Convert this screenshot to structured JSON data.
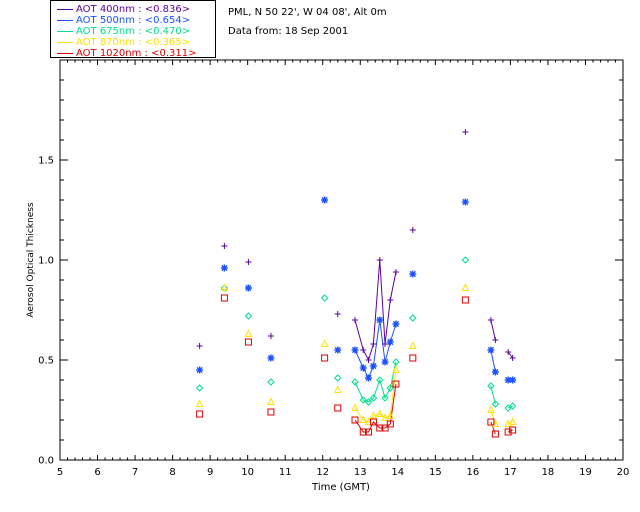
{
  "station": "PML, N 50 22', W 04 08', Alt 0m",
  "date_text": "Data from: 18 Sep 2001",
  "chart_data": {
    "type": "scatter",
    "xlabel": "Time (GMT)",
    "ylabel": "Aerosol Optical Thickness",
    "xlim": [
      5,
      20
    ],
    "ylim": [
      0,
      2.0
    ],
    "xticks": [
      5,
      6,
      7,
      8,
      9,
      10,
      11,
      12,
      13,
      14,
      15,
      16,
      17,
      18,
      19,
      20
    ],
    "yticks": [
      0.0,
      0.5,
      1.0,
      1.5
    ],
    "ytick_labels": [
      "0.0",
      "0.5",
      "1.0",
      "1.5"
    ],
    "series": [
      {
        "name": "AOT  400nm",
        "legend": "AOT  400nm : <0.836>",
        "color": "#5a00a0",
        "marker": "plus",
        "points": [
          [
            8.72,
            0.57
          ],
          [
            9.38,
            1.07
          ],
          [
            10.02,
            0.99
          ],
          [
            10.62,
            0.62
          ],
          [
            12.4,
            0.73
          ],
          [
            12.86,
            0.7
          ],
          [
            13.08,
            0.55
          ],
          [
            13.22,
            0.5
          ],
          [
            13.35,
            0.58
          ],
          [
            13.52,
            1.0
          ],
          [
            13.66,
            0.58
          ],
          [
            13.8,
            0.8
          ],
          [
            13.95,
            0.94
          ],
          [
            14.4,
            1.15
          ],
          [
            15.8,
            1.64
          ],
          [
            16.48,
            0.7
          ],
          [
            16.6,
            0.6
          ],
          [
            16.94,
            0.54
          ],
          [
            17.06,
            0.51
          ]
        ],
        "segments": [
          [
            [
              12.86,
              0.7
            ],
            [
              13.08,
              0.55
            ],
            [
              13.22,
              0.5
            ],
            [
              13.35,
              0.58
            ],
            [
              13.52,
              1.0
            ],
            [
              13.66,
              0.58
            ],
            [
              13.8,
              0.8
            ],
            [
              13.95,
              0.94
            ]
          ],
          [
            [
              16.48,
              0.7
            ],
            [
              16.6,
              0.6
            ]
          ],
          [
            [
              16.94,
              0.54
            ],
            [
              17.06,
              0.51
            ]
          ]
        ]
      },
      {
        "name": "AOT  500nm",
        "legend": "AOT  500nm : <0.654>",
        "color": "#1a50ff",
        "marker": "star",
        "points": [
          [
            8.72,
            0.45
          ],
          [
            9.38,
            0.96
          ],
          [
            10.02,
            0.86
          ],
          [
            10.62,
            0.51
          ],
          [
            12.05,
            1.3
          ],
          [
            12.4,
            0.55
          ],
          [
            12.86,
            0.55
          ],
          [
            13.08,
            0.46
          ],
          [
            13.22,
            0.41
          ],
          [
            13.35,
            0.47
          ],
          [
            13.52,
            0.7
          ],
          [
            13.66,
            0.49
          ],
          [
            13.8,
            0.59
          ],
          [
            13.95,
            0.68
          ],
          [
            14.4,
            0.93
          ],
          [
            15.8,
            1.29
          ],
          [
            16.48,
            0.55
          ],
          [
            16.6,
            0.44
          ],
          [
            16.94,
            0.4
          ],
          [
            17.06,
            0.4
          ]
        ],
        "segments": [
          [
            [
              12.86,
              0.55
            ],
            [
              13.08,
              0.46
            ],
            [
              13.22,
              0.41
            ],
            [
              13.35,
              0.47
            ],
            [
              13.52,
              0.7
            ],
            [
              13.66,
              0.49
            ],
            [
              13.8,
              0.59
            ],
            [
              13.95,
              0.68
            ]
          ],
          [
            [
              16.48,
              0.55
            ],
            [
              16.6,
              0.44
            ]
          ],
          [
            [
              16.94,
              0.4
            ],
            [
              17.06,
              0.4
            ]
          ]
        ]
      },
      {
        "name": "AOT  675nm",
        "legend": "AOT  675nm : <0.470>",
        "color": "#00e08a",
        "marker": "diamond",
        "points": [
          [
            8.72,
            0.36
          ],
          [
            9.38,
            0.86
          ],
          [
            10.02,
            0.72
          ],
          [
            10.62,
            0.39
          ],
          [
            12.05,
            0.81
          ],
          [
            12.4,
            0.41
          ],
          [
            12.86,
            0.39
          ],
          [
            13.08,
            0.3
          ],
          [
            13.22,
            0.29
          ],
          [
            13.35,
            0.31
          ],
          [
            13.52,
            0.4
          ],
          [
            13.66,
            0.31
          ],
          [
            13.8,
            0.36
          ],
          [
            13.95,
            0.49
          ],
          [
            14.4,
            0.71
          ],
          [
            15.8,
            1.0
          ],
          [
            16.48,
            0.37
          ],
          [
            16.6,
            0.28
          ],
          [
            16.94,
            0.26
          ],
          [
            17.06,
            0.27
          ]
        ],
        "segments": [
          [
            [
              12.86,
              0.39
            ],
            [
              13.08,
              0.3
            ],
            [
              13.22,
              0.29
            ],
            [
              13.35,
              0.31
            ],
            [
              13.52,
              0.4
            ],
            [
              13.66,
              0.31
            ],
            [
              13.8,
              0.36
            ],
            [
              13.95,
              0.49
            ]
          ],
          [
            [
              16.48,
              0.37
            ],
            [
              16.6,
              0.28
            ]
          ],
          [
            [
              16.94,
              0.26
            ],
            [
              17.06,
              0.27
            ]
          ]
        ]
      },
      {
        "name": "AOT  870nm",
        "legend": "AOT  870nm : <0.365>",
        "color": "#ffe000",
        "marker": "triangle",
        "points": [
          [
            8.72,
            0.28
          ],
          [
            9.38,
            0.86
          ],
          [
            10.02,
            0.63
          ],
          [
            10.62,
            0.29
          ],
          [
            12.05,
            0.58
          ],
          [
            12.4,
            0.35
          ],
          [
            12.86,
            0.26
          ],
          [
            13.08,
            0.2
          ],
          [
            13.22,
            0.19
          ],
          [
            13.35,
            0.22
          ],
          [
            13.52,
            0.23
          ],
          [
            13.66,
            0.21
          ],
          [
            13.8,
            0.22
          ],
          [
            13.95,
            0.45
          ],
          [
            14.4,
            0.57
          ],
          [
            15.8,
            0.86
          ],
          [
            16.48,
            0.25
          ],
          [
            16.6,
            0.18
          ],
          [
            16.94,
            0.18
          ],
          [
            17.06,
            0.19
          ]
        ],
        "segments": [
          [
            [
              12.86,
              0.26
            ],
            [
              13.08,
              0.2
            ],
            [
              13.22,
              0.19
            ],
            [
              13.35,
              0.22
            ],
            [
              13.52,
              0.23
            ],
            [
              13.66,
              0.21
            ],
            [
              13.8,
              0.22
            ],
            [
              13.95,
              0.45
            ]
          ],
          [
            [
              16.48,
              0.25
            ],
            [
              16.6,
              0.18
            ]
          ],
          [
            [
              16.94,
              0.18
            ],
            [
              17.06,
              0.19
            ]
          ]
        ]
      },
      {
        "name": "AOT 1020nm",
        "legend": "AOT 1020nm : <0.311>",
        "color": "#e00000",
        "marker": "square",
        "points": [
          [
            8.72,
            0.23
          ],
          [
            9.38,
            0.81
          ],
          [
            10.02,
            0.59
          ],
          [
            10.62,
            0.24
          ],
          [
            12.05,
            0.51
          ],
          [
            12.4,
            0.26
          ],
          [
            12.86,
            0.2
          ],
          [
            13.08,
            0.14
          ],
          [
            13.22,
            0.14
          ],
          [
            13.35,
            0.19
          ],
          [
            13.52,
            0.16
          ],
          [
            13.66,
            0.16
          ],
          [
            13.8,
            0.18
          ],
          [
            13.95,
            0.38
          ],
          [
            14.4,
            0.51
          ],
          [
            15.8,
            0.8
          ],
          [
            16.48,
            0.19
          ],
          [
            16.6,
            0.13
          ],
          [
            16.94,
            0.14
          ],
          [
            17.06,
            0.15
          ]
        ],
        "segments": [
          [
            [
              12.86,
              0.2
            ],
            [
              13.08,
              0.14
            ],
            [
              13.22,
              0.14
            ],
            [
              13.35,
              0.19
            ],
            [
              13.52,
              0.16
            ],
            [
              13.66,
              0.16
            ],
            [
              13.8,
              0.18
            ],
            [
              13.95,
              0.38
            ]
          ],
          [
            [
              16.48,
              0.19
            ],
            [
              16.6,
              0.13
            ]
          ],
          [
            [
              16.94,
              0.14
            ],
            [
              17.06,
              0.15
            ]
          ]
        ]
      }
    ]
  }
}
